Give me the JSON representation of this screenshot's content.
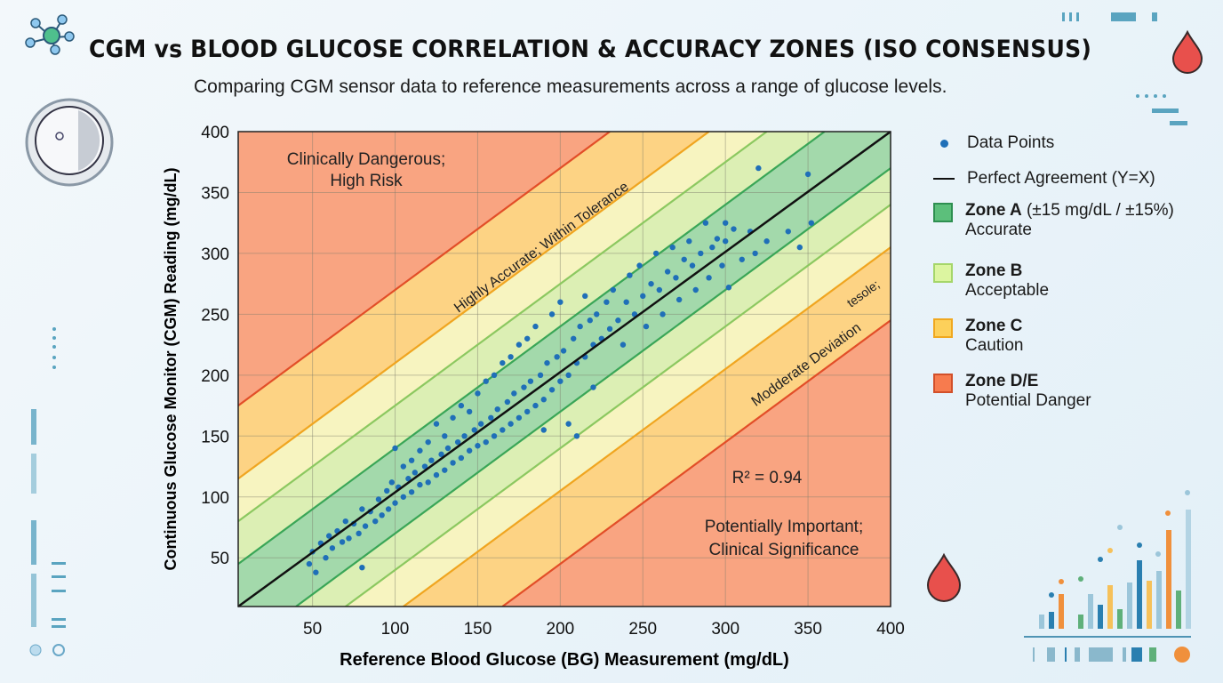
{
  "header": {
    "title": "CGM vs BLOOD GLUCOSE CORRELATION & ACCURACY ZONES (ISO CONSENSUS)",
    "subtitle": "Comparing CGM sensor data to reference measurements across a range of glucose levels."
  },
  "icons": [
    "molecule-icon",
    "blood-drop-icon",
    "cgm-sensor-icon",
    "mini-bar-chart-icon"
  ],
  "legend": {
    "data_points": "Data Points",
    "perfect": "Perfect Agreement (Y=X)",
    "zone_a_name": "Zone A",
    "zone_a_detail": " (±15 mg/dL / ±15%)",
    "zone_a_desc": "Accurate",
    "zone_b_name": "Zone B",
    "zone_b_desc": "Acceptable",
    "zone_c_name": "Zone C",
    "zone_c_desc": "Caution",
    "zone_d_name": "Zone D/E",
    "zone_d_desc": "Potential Danger"
  },
  "chart_data": {
    "type": "scatter",
    "title": "CGM vs BLOOD GLUCOSE CORRELATION & ACCURACY ZONES (ISO CONSENSUS)",
    "xlabel": "Reference Blood Glucose (BG) Measurement (mg/dL)",
    "ylabel": "Continuous Glucose Monitor (CGM) Reading (mg/dL)",
    "xlim": [
      5,
      400
    ],
    "ylim": [
      10,
      400
    ],
    "xticks": [
      "50",
      "100",
      "150",
      "200",
      "250",
      "300",
      "350",
      "400"
    ],
    "yticks": [
      "50",
      "100",
      "150",
      "200",
      "250",
      "300",
      "350",
      "400"
    ],
    "grid": true,
    "legend_placement": "right",
    "reference_line": "y=x",
    "zone_boundaries_offset_mg_dl": {
      "upper": [
        40,
        75,
        110,
        170
      ],
      "lower": [
        -30,
        -60,
        -95,
        -155
      ]
    },
    "colors": {
      "points": "#1f6fb8",
      "zone_a": "#a3d9ab",
      "zone_a_line": "#3aa657",
      "zone_b": "#dcefb4",
      "zone_b_line": "#8cc860",
      "zone_b2": "#f7f4c0",
      "zone_c": "#fdd384",
      "zone_c_line": "#f0a520",
      "zone_d": "#f9a481",
      "zone_d_line": "#e24e28"
    },
    "annotations": {
      "top_left": [
        "Clinically Dangerous;",
        "High Risk"
      ],
      "upper_band": "Highly Accurate; Within Tolerance",
      "lower_band": [
        "tesole;",
        "Modderate Deviation"
      ],
      "r2": "R² = 0.94",
      "bottom_right": [
        "Potentially Important;",
        "Clinical Significance"
      ]
    },
    "points": [
      [
        48,
        45
      ],
      [
        50,
        55
      ],
      [
        52,
        38
      ],
      [
        55,
        62
      ],
      [
        58,
        50
      ],
      [
        60,
        68
      ],
      [
        62,
        58
      ],
      [
        65,
        72
      ],
      [
        68,
        63
      ],
      [
        70,
        80
      ],
      [
        72,
        66
      ],
      [
        75,
        78
      ],
      [
        78,
        70
      ],
      [
        80,
        42
      ],
      [
        80,
        90
      ],
      [
        82,
        76
      ],
      [
        85,
        88
      ],
      [
        88,
        80
      ],
      [
        90,
        98
      ],
      [
        92,
        85
      ],
      [
        95,
        105
      ],
      [
        96,
        90
      ],
      [
        98,
        112
      ],
      [
        100,
        95
      ],
      [
        100,
        140
      ],
      [
        102,
        108
      ],
      [
        105,
        100
      ],
      [
        105,
        125
      ],
      [
        108,
        115
      ],
      [
        110,
        104
      ],
      [
        110,
        130
      ],
      [
        112,
        120
      ],
      [
        115,
        110
      ],
      [
        115,
        138
      ],
      [
        118,
        125
      ],
      [
        120,
        112
      ],
      [
        120,
        145
      ],
      [
        122,
        130
      ],
      [
        125,
        118
      ],
      [
        125,
        160
      ],
      [
        128,
        135
      ],
      [
        130,
        122
      ],
      [
        130,
        150
      ],
      [
        132,
        140
      ],
      [
        135,
        128
      ],
      [
        135,
        165
      ],
      [
        138,
        145
      ],
      [
        140,
        132
      ],
      [
        140,
        175
      ],
      [
        142,
        150
      ],
      [
        145,
        138
      ],
      [
        145,
        170
      ],
      [
        148,
        155
      ],
      [
        150,
        142
      ],
      [
        150,
        185
      ],
      [
        152,
        160
      ],
      [
        155,
        145
      ],
      [
        155,
        195
      ],
      [
        158,
        165
      ],
      [
        160,
        150
      ],
      [
        160,
        200
      ],
      [
        162,
        172
      ],
      [
        165,
        155
      ],
      [
        165,
        210
      ],
      [
        168,
        178
      ],
      [
        170,
        160
      ],
      [
        170,
        215
      ],
      [
        172,
        185
      ],
      [
        175,
        165
      ],
      [
        175,
        225
      ],
      [
        178,
        190
      ],
      [
        180,
        170
      ],
      [
        180,
        230
      ],
      [
        182,
        195
      ],
      [
        185,
        175
      ],
      [
        185,
        240
      ],
      [
        188,
        200
      ],
      [
        190,
        180
      ],
      [
        190,
        155
      ],
      [
        192,
        210
      ],
      [
        195,
        188
      ],
      [
        195,
        250
      ],
      [
        198,
        215
      ],
      [
        200,
        195
      ],
      [
        200,
        260
      ],
      [
        202,
        220
      ],
      [
        205,
        200
      ],
      [
        205,
        160
      ],
      [
        208,
        230
      ],
      [
        210,
        210
      ],
      [
        210,
        150
      ],
      [
        212,
        240
      ],
      [
        215,
        215
      ],
      [
        215,
        265
      ],
      [
        218,
        245
      ],
      [
        220,
        225
      ],
      [
        220,
        190
      ],
      [
        222,
        250
      ],
      [
        225,
        230
      ],
      [
        228,
        260
      ],
      [
        230,
        238
      ],
      [
        232,
        270
      ],
      [
        235,
        245
      ],
      [
        238,
        225
      ],
      [
        240,
        260
      ],
      [
        242,
        282
      ],
      [
        245,
        250
      ],
      [
        248,
        290
      ],
      [
        250,
        265
      ],
      [
        252,
        240
      ],
      [
        255,
        275
      ],
      [
        258,
        300
      ],
      [
        260,
        270
      ],
      [
        262,
        250
      ],
      [
        265,
        285
      ],
      [
        268,
        305
      ],
      [
        270,
        280
      ],
      [
        272,
        262
      ],
      [
        275,
        295
      ],
      [
        278,
        310
      ],
      [
        280,
        290
      ],
      [
        282,
        270
      ],
      [
        285,
        300
      ],
      [
        288,
        325
      ],
      [
        290,
        280
      ],
      [
        292,
        305
      ],
      [
        295,
        312
      ],
      [
        298,
        290
      ],
      [
        300,
        310
      ],
      [
        302,
        272
      ],
      [
        305,
        320
      ],
      [
        310,
        295
      ],
      [
        318,
        300
      ],
      [
        320,
        370
      ],
      [
        325,
        310
      ],
      [
        338,
        318
      ],
      [
        345,
        305
      ],
      [
        350,
        365
      ],
      [
        352,
        325
      ],
      [
        315,
        318
      ],
      [
        300,
        325
      ]
    ]
  }
}
